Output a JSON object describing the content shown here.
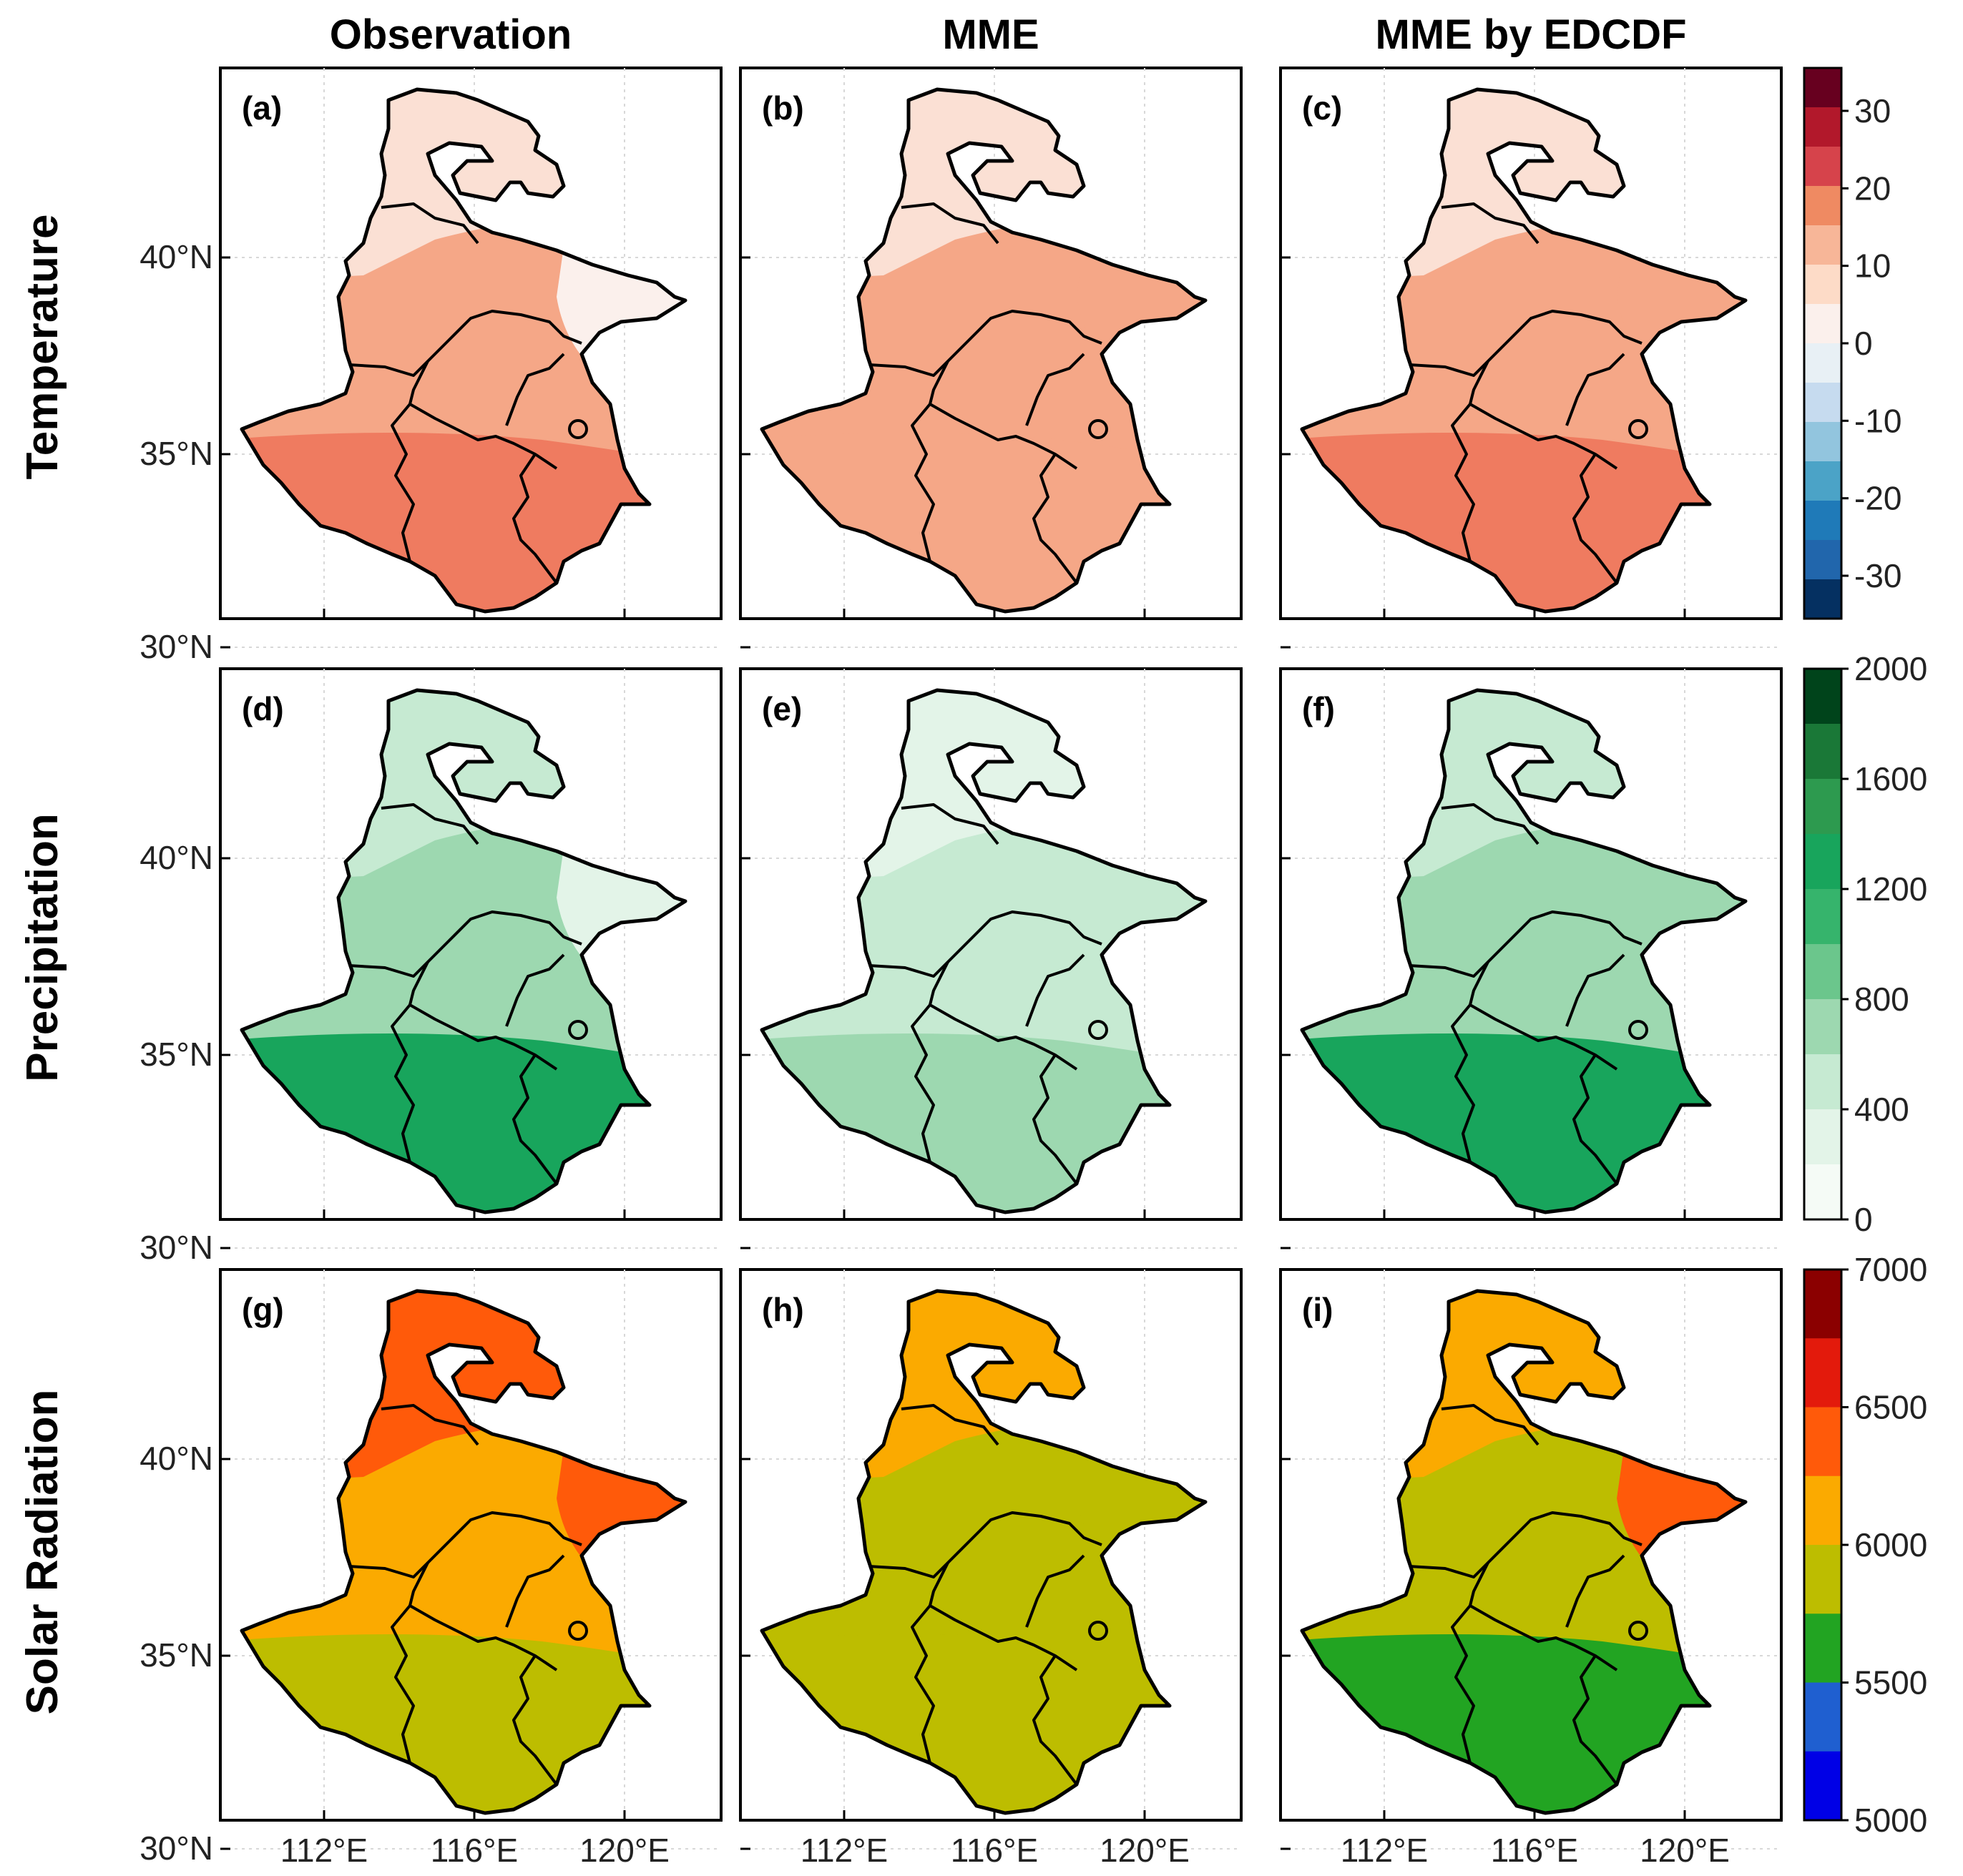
{
  "columns": [
    "Observation",
    "MME",
    "MME by EDCDF"
  ],
  "rows": [
    "Temperature",
    "Precipitation",
    "Solar Radiation"
  ],
  "panel_labels": [
    "(a)",
    "(b)",
    "(c)",
    "(d)",
    "(e)",
    "(f)",
    "(g)",
    "(h)",
    "(i)"
  ],
  "lat_ticks": [
    "40°N",
    "35°N",
    "30°N"
  ],
  "lon_ticks": [
    "112°E",
    "116°E",
    "120°E"
  ],
  "colorbars": [
    {
      "variable": "Temperature",
      "labels": [
        "30",
        "20",
        "10",
        "0",
        "-10",
        "-20",
        "-30"
      ],
      "colors": [
        "#67001f",
        "#b2182b",
        "#d6434b",
        "#ef8a62",
        "#f7b698",
        "#fddbc7",
        "#fbf0ec",
        "#e8f0f5",
        "#c6dbef",
        "#92c5de",
        "#4ba3c7",
        "#1f7ab8",
        "#2166ac",
        "#053061"
      ]
    },
    {
      "variable": "Precipitation",
      "labels": [
        "2000",
        "1600",
        "1200",
        "800",
        "400",
        "0"
      ],
      "colors": [
        "#00441b",
        "#1a7837",
        "#2d9a4f",
        "#18a55c",
        "#36b46c",
        "#6bc68c",
        "#9dd8b0",
        "#c6ead2",
        "#e3f4e8",
        "#f5fbf6"
      ]
    },
    {
      "variable": "Solar Radiation",
      "labels": [
        "7000",
        "6500",
        "6000",
        "5500",
        "5000"
      ],
      "colors": [
        "#8b0000",
        "#e31a0c",
        "#ff5a0a",
        "#fbaa00",
        "#bdbd00",
        "#22a422",
        "#1f5fd0",
        "#0000e6"
      ]
    }
  ],
  "panel_colors": [
    {
      "base": "#f5a787",
      "north": "#fbe0d4",
      "south": "#ef7b60",
      "coast": "#fbf0ec"
    },
    {
      "base": "#f5a787",
      "north": "#fbe0d4",
      "south": "#f5a787",
      "coast": "#f5a787"
    },
    {
      "base": "#f5a787",
      "north": "#fbe0d4",
      "south": "#ef7b60",
      "coast": "#f5a787"
    },
    {
      "base": "#9dd8b0",
      "north": "#c6ead2",
      "south": "#18a55c",
      "coast": "#e3f4e8"
    },
    {
      "base": "#c6ead2",
      "north": "#e3f4e8",
      "south": "#9dd8b0",
      "coast": "#c6ead2"
    },
    {
      "base": "#9dd8b0",
      "north": "#c6ead2",
      "south": "#18a55c",
      "coast": "#9dd8b0"
    },
    {
      "base": "#fbaa00",
      "north": "#ff5a0a",
      "south": "#bdbd00",
      "coast": "#ff5a0a"
    },
    {
      "base": "#bdbd00",
      "north": "#fbaa00",
      "south": "#bdbd00",
      "coast": "#bdbd00"
    },
    {
      "base": "#bdbd00",
      "north": "#fbaa00",
      "south": "#22a422",
      "coast": "#ff5a0a"
    }
  ]
}
